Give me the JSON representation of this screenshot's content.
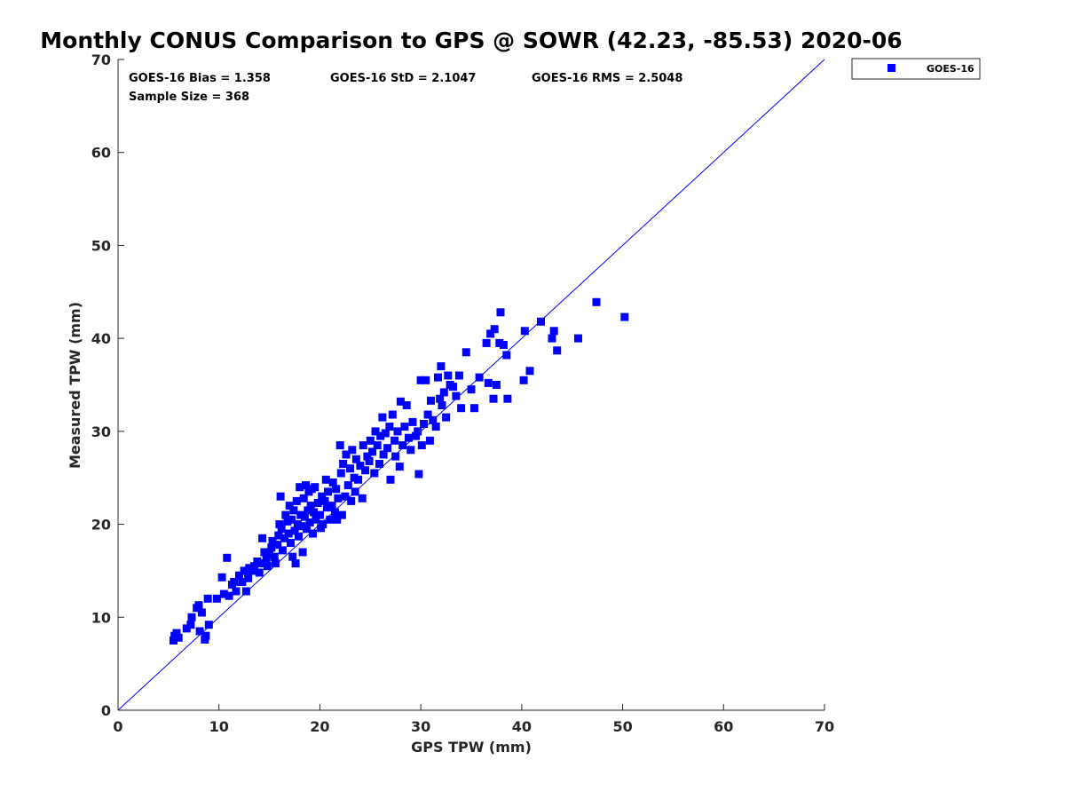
{
  "chart_data": {
    "type": "scatter",
    "title": "Monthly CONUS Comparison to GPS @ SOWR (42.23, -85.53) 2020-06",
    "xlabel": "GPS TPW (mm)",
    "ylabel": "Measured TPW (mm)",
    "xlim": [
      0,
      70
    ],
    "ylim": [
      0,
      70
    ],
    "xticks": [
      "0",
      "10",
      "20",
      "30",
      "40",
      "50",
      "60",
      "70"
    ],
    "yticks": [
      "0",
      "10",
      "20",
      "30",
      "40",
      "50",
      "60",
      "70"
    ],
    "grid": false,
    "legend_position": "top-right (outside plot)",
    "reference_line": {
      "type": "one-to-one",
      "color": "#0000ff"
    },
    "stats": {
      "bias": "GOES-16 Bias = 1.358",
      "std": "GOES-16 StD = 2.1047",
      "rms": "GOES-16 RMS = 2.5048",
      "sample": "Sample Size = 368"
    },
    "series": [
      {
        "name": "GOES-16",
        "color": "#0000ff",
        "marker": "square",
        "points": [
          [
            5.5,
            7.5
          ],
          [
            5.6,
            8.0
          ],
          [
            5.8,
            8.3
          ],
          [
            6.0,
            7.8
          ],
          [
            6.8,
            8.8
          ],
          [
            7.2,
            9.2
          ],
          [
            7.3,
            10.0
          ],
          [
            7.8,
            11.0
          ],
          [
            8.0,
            11.3
          ],
          [
            8.1,
            8.5
          ],
          [
            8.3,
            10.5
          ],
          [
            8.6,
            7.6
          ],
          [
            8.7,
            8.0
          ],
          [
            9.0,
            9.2
          ],
          [
            8.9,
            12.0
          ],
          [
            9.8,
            12.0
          ],
          [
            10.3,
            14.3
          ],
          [
            10.5,
            12.5
          ],
          [
            10.8,
            16.4
          ],
          [
            11.0,
            12.3
          ],
          [
            11.3,
            13.5
          ],
          [
            11.5,
            13.8
          ],
          [
            11.7,
            12.8
          ],
          [
            12.0,
            14.5
          ],
          [
            12.3,
            13.8
          ],
          [
            12.5,
            15.0
          ],
          [
            12.7,
            12.8
          ],
          [
            12.9,
            14.2
          ],
          [
            13.0,
            15.3
          ],
          [
            13.3,
            15.0
          ],
          [
            13.5,
            15.5
          ],
          [
            13.8,
            16.0
          ],
          [
            14.0,
            14.8
          ],
          [
            14.2,
            15.8
          ],
          [
            14.3,
            18.5
          ],
          [
            14.5,
            17.0
          ],
          [
            14.7,
            16.3
          ],
          [
            14.8,
            15.5
          ],
          [
            15.0,
            16.8
          ],
          [
            15.2,
            17.5
          ],
          [
            15.3,
            18.2
          ],
          [
            15.5,
            16.5
          ],
          [
            15.6,
            15.8
          ],
          [
            15.8,
            17.8
          ],
          [
            15.9,
            18.8
          ],
          [
            16.0,
            20.0
          ],
          [
            16.1,
            23.0
          ],
          [
            16.2,
            19.5
          ],
          [
            16.3,
            17.2
          ],
          [
            16.5,
            18.5
          ],
          [
            16.6,
            21.0
          ],
          [
            16.8,
            20.3
          ],
          [
            16.9,
            19.0
          ],
          [
            17.0,
            22.0
          ],
          [
            17.1,
            18.0
          ],
          [
            17.2,
            20.5
          ],
          [
            17.3,
            16.5
          ],
          [
            17.4,
            21.5
          ],
          [
            17.5,
            19.3
          ],
          [
            17.6,
            15.8
          ],
          [
            17.7,
            22.5
          ],
          [
            17.8,
            20.0
          ],
          [
            17.9,
            18.7
          ],
          [
            18.0,
            24.0
          ],
          [
            18.1,
            21.0
          ],
          [
            18.2,
            19.8
          ],
          [
            18.3,
            17.0
          ],
          [
            18.4,
            22.8
          ],
          [
            18.5,
            20.8
          ],
          [
            18.6,
            24.2
          ],
          [
            18.7,
            19.5
          ],
          [
            18.8,
            21.5
          ],
          [
            18.9,
            23.5
          ],
          [
            19.0,
            20.2
          ],
          [
            19.1,
            22.0
          ],
          [
            19.2,
            23.8
          ],
          [
            19.3,
            19.0
          ],
          [
            19.4,
            21.3
          ],
          [
            19.5,
            24.0
          ],
          [
            19.6,
            20.5
          ],
          [
            19.8,
            22.3
          ],
          [
            20.0,
            21.0
          ],
          [
            20.1,
            19.6
          ],
          [
            20.2,
            23.0
          ],
          [
            20.3,
            20.0
          ],
          [
            20.5,
            22.5
          ],
          [
            20.6,
            24.8
          ],
          [
            20.7,
            21.8
          ],
          [
            20.8,
            23.5
          ],
          [
            21.0,
            20.5
          ],
          [
            21.2,
            22.0
          ],
          [
            21.3,
            24.5
          ],
          [
            21.5,
            21.3
          ],
          [
            21.6,
            23.8
          ],
          [
            21.8,
            22.8
          ],
          [
            22.0,
            28.5
          ],
          [
            22.1,
            25.5
          ],
          [
            22.2,
            21.0
          ],
          [
            22.3,
            26.5
          ],
          [
            22.5,
            23.0
          ],
          [
            22.6,
            27.5
          ],
          [
            22.8,
            24.2
          ],
          [
            23.0,
            26.0
          ],
          [
            23.1,
            22.5
          ],
          [
            23.2,
            28.0
          ],
          [
            23.4,
            25.0
          ],
          [
            23.5,
            23.5
          ],
          [
            23.6,
            27.0
          ],
          [
            23.8,
            24.8
          ],
          [
            24.0,
            26.3
          ],
          [
            24.2,
            22.8
          ],
          [
            24.3,
            28.5
          ],
          [
            24.5,
            25.8
          ],
          [
            24.7,
            27.3
          ],
          [
            24.9,
            26.8
          ],
          [
            25.0,
            29.0
          ],
          [
            25.2,
            27.8
          ],
          [
            25.4,
            25.5
          ],
          [
            25.5,
            30.0
          ],
          [
            25.7,
            28.5
          ],
          [
            25.9,
            26.5
          ],
          [
            26.0,
            29.5
          ],
          [
            26.2,
            31.5
          ],
          [
            26.3,
            27.5
          ],
          [
            26.5,
            29.8
          ],
          [
            26.7,
            28.2
          ],
          [
            26.9,
            30.5
          ],
          [
            27.0,
            24.8
          ],
          [
            27.2,
            31.8
          ],
          [
            27.4,
            29.0
          ],
          [
            27.5,
            27.3
          ],
          [
            27.7,
            30.0
          ],
          [
            27.9,
            26.2
          ],
          [
            28.0,
            33.2
          ],
          [
            28.2,
            28.5
          ],
          [
            28.4,
            30.5
          ],
          [
            28.6,
            32.8
          ],
          [
            28.8,
            29.3
          ],
          [
            29.0,
            28.0
          ],
          [
            29.2,
            31.0
          ],
          [
            29.5,
            29.5
          ],
          [
            29.7,
            30.0
          ],
          [
            29.8,
            25.4
          ],
          [
            30.0,
            35.5
          ],
          [
            30.1,
            28.5
          ],
          [
            30.3,
            30.8
          ],
          [
            30.5,
            35.5
          ],
          [
            30.7,
            31.8
          ],
          [
            30.9,
            29.0
          ],
          [
            31.0,
            33.3
          ],
          [
            31.2,
            31.2
          ],
          [
            31.5,
            30.5
          ],
          [
            31.7,
            35.8
          ],
          [
            31.9,
            33.5
          ],
          [
            32.0,
            37.0
          ],
          [
            32.1,
            32.8
          ],
          [
            32.3,
            34.2
          ],
          [
            32.5,
            31.5
          ],
          [
            32.7,
            36.0
          ],
          [
            32.9,
            35.0
          ],
          [
            33.2,
            34.8
          ],
          [
            33.5,
            33.8
          ],
          [
            33.8,
            36.0
          ],
          [
            34.0,
            32.5
          ],
          [
            34.5,
            38.5
          ],
          [
            35.0,
            34.5
          ],
          [
            35.3,
            32.5
          ],
          [
            35.8,
            35.8
          ],
          [
            36.5,
            39.5
          ],
          [
            36.7,
            35.2
          ],
          [
            36.9,
            40.5
          ],
          [
            37.2,
            33.5
          ],
          [
            37.3,
            41.0
          ],
          [
            37.5,
            35.0
          ],
          [
            37.8,
            39.5
          ],
          [
            37.9,
            42.8
          ],
          [
            38.2,
            39.3
          ],
          [
            38.5,
            38.2
          ],
          [
            38.6,
            33.5
          ],
          [
            40.2,
            35.5
          ],
          [
            40.3,
            40.8
          ],
          [
            40.8,
            36.5
          ],
          [
            41.9,
            41.8
          ],
          [
            43.0,
            40.0
          ],
          [
            43.2,
            40.8
          ],
          [
            43.5,
            38.7
          ],
          [
            45.6,
            40.0
          ],
          [
            47.4,
            43.9
          ],
          [
            50.2,
            42.3
          ],
          [
            21.7,
            20.5
          ]
        ]
      }
    ]
  }
}
